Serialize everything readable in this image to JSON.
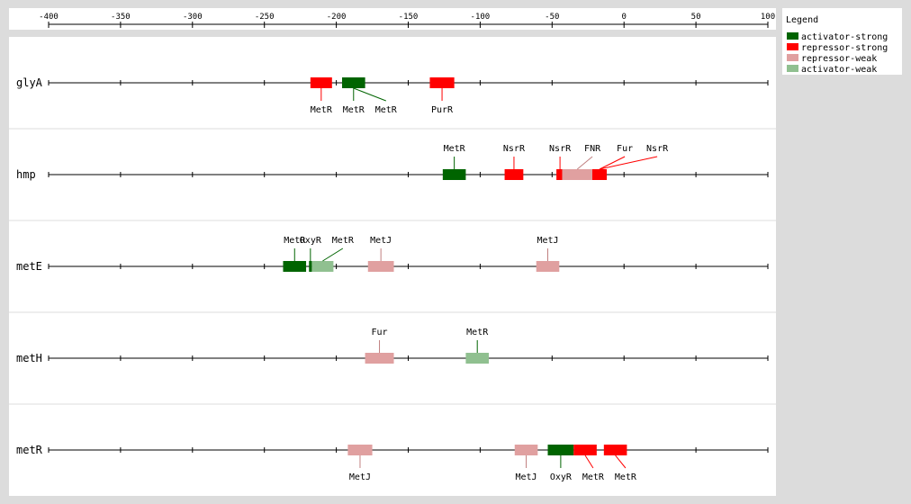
{
  "axis": {
    "ticks": [
      -400,
      -350,
      -300,
      -250,
      -200,
      -150,
      -100,
      -50,
      0,
      50,
      100
    ],
    "range": [
      -400,
      100
    ]
  },
  "colors": {
    "activator-strong": "#006400",
    "repressor-strong": "#ff0000",
    "repressor-weak": "#e0a0a0",
    "activator-weak": "#90c090"
  },
  "legend": {
    "title": "Legend",
    "items": [
      {
        "key": "activator-strong",
        "label": "activator-strong"
      },
      {
        "key": "repressor-strong",
        "label": "repressor-strong"
      },
      {
        "key": "repressor-weak",
        "label": "repressor-weak"
      },
      {
        "key": "activator-weak",
        "label": "activator-weak"
      }
    ]
  },
  "genes": [
    {
      "name": "glyA",
      "sites": [
        {
          "tf": "MetR",
          "start": -218,
          "end": -203,
          "type": "repressor-strong",
          "label_side": "below"
        },
        {
          "tf": "MetR",
          "start": -196,
          "end": -180,
          "type": "activator-strong",
          "label_side": "below"
        },
        {
          "tf": "MetR",
          "start": -196,
          "end": -180,
          "type": "activator-strong",
          "label_side": "below"
        },
        {
          "tf": "PurR",
          "start": -135,
          "end": -118,
          "type": "repressor-strong",
          "label_side": "below"
        }
      ]
    },
    {
      "name": "hmp",
      "sites": [
        {
          "tf": "MetR",
          "start": -126,
          "end": -110,
          "type": "activator-strong",
          "label_side": "above"
        },
        {
          "tf": "NsrR",
          "start": -83,
          "end": -70,
          "type": "repressor-strong",
          "label_side": "above"
        },
        {
          "tf": "NsrR",
          "start": -47,
          "end": -42,
          "type": "repressor-strong",
          "label_side": "above"
        },
        {
          "tf": "FNR",
          "start": -43,
          "end": -22,
          "type": "repressor-weak",
          "label_side": "above"
        },
        {
          "tf": "Fur",
          "start": -22,
          "end": -12,
          "type": "repressor-strong",
          "label_side": "above"
        },
        {
          "tf": "NsrR",
          "start": -22,
          "end": -12,
          "type": "repressor-strong",
          "label_side": "above"
        }
      ]
    },
    {
      "name": "metE",
      "sites": [
        {
          "tf": "MetR",
          "start": -237,
          "end": -221,
          "type": "activator-strong",
          "label_side": "above"
        },
        {
          "tf": "OxyR",
          "start": -219,
          "end": -217,
          "type": "activator-strong",
          "label_side": "above"
        },
        {
          "tf": "MetR",
          "start": -217,
          "end": -202,
          "type": "activator-weak",
          "label_side": "above"
        },
        {
          "tf": "MetJ",
          "start": -178,
          "end": -160,
          "type": "repressor-weak",
          "label_side": "above"
        },
        {
          "tf": "MetJ",
          "start": -61,
          "end": -45,
          "type": "repressor-weak",
          "label_side": "above"
        }
      ]
    },
    {
      "name": "metH",
      "sites": [
        {
          "tf": "Fur",
          "start": -180,
          "end": -160,
          "type": "repressor-weak",
          "label_side": "above"
        },
        {
          "tf": "MetR",
          "start": -110,
          "end": -94,
          "type": "activator-weak",
          "label_side": "above"
        }
      ]
    },
    {
      "name": "metR",
      "sites": [
        {
          "tf": "MetJ",
          "start": -192,
          "end": -175,
          "type": "repressor-weak",
          "label_side": "below"
        },
        {
          "tf": "MetJ",
          "start": -76,
          "end": -60,
          "type": "repressor-weak",
          "label_side": "below"
        },
        {
          "tf": "OxyR",
          "start": -53,
          "end": -35,
          "type": "activator-strong",
          "label_side": "below"
        },
        {
          "tf": "MetR",
          "start": -35,
          "end": -19,
          "type": "repressor-strong",
          "label_side": "below"
        },
        {
          "tf": "MetR",
          "start": -14,
          "end": 2,
          "type": "repressor-strong",
          "label_side": "below"
        }
      ]
    }
  ]
}
